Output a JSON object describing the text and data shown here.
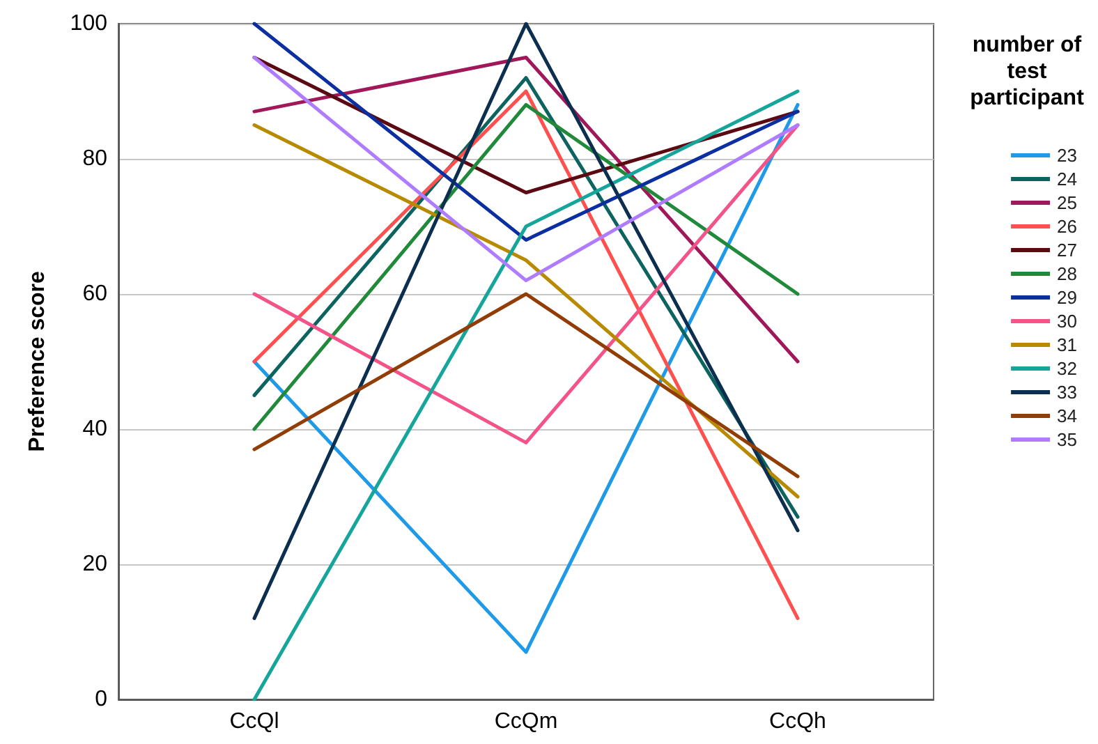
{
  "chart_data": {
    "type": "line",
    "ylabel": "Preference score",
    "legend_title": "number of\ntest\nparticipant",
    "categories": [
      "CcQl",
      "CcQm",
      "CcQh"
    ],
    "ylim": [
      0,
      100
    ],
    "yticks": [
      0,
      20,
      40,
      60,
      80,
      100
    ],
    "grid": "y",
    "legend": "right",
    "marker": "none",
    "line_style": "solid",
    "series": [
      {
        "name": "23",
        "color": "#1f9ae8",
        "values": [
          50,
          7,
          88
        ]
      },
      {
        "name": "24",
        "color": "#0d6360",
        "values": [
          45,
          92,
          27
        ]
      },
      {
        "name": "25",
        "color": "#a0185a",
        "values": [
          87,
          95,
          50
        ]
      },
      {
        "name": "26",
        "color": "#ff5050",
        "values": [
          50,
          90,
          12
        ]
      },
      {
        "name": "27",
        "color": "#5c0a12",
        "values": [
          95,
          75,
          87
        ]
      },
      {
        "name": "28",
        "color": "#21893a",
        "values": [
          40,
          88,
          60
        ]
      },
      {
        "name": "29",
        "color": "#0b2fa0",
        "values": [
          100,
          68,
          87
        ]
      },
      {
        "name": "30",
        "color": "#f45388",
        "values": [
          60,
          38,
          85
        ]
      },
      {
        "name": "31",
        "color": "#b88a00",
        "values": [
          85,
          65,
          30
        ]
      },
      {
        "name": "32",
        "color": "#16a59a",
        "values": [
          0,
          70,
          90
        ]
      },
      {
        "name": "33",
        "color": "#0c2f4f",
        "values": [
          12,
          100,
          25
        ]
      },
      {
        "name": "34",
        "color": "#923c06",
        "values": [
          37,
          60,
          33
        ]
      },
      {
        "name": "35",
        "color": "#b07cff",
        "values": [
          95,
          62,
          85
        ]
      }
    ]
  }
}
